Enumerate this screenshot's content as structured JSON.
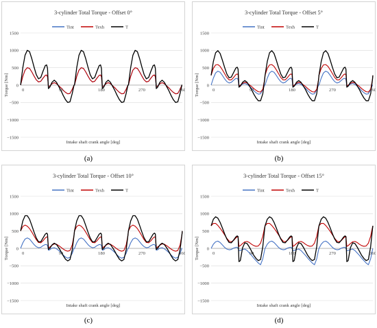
{
  "panels": [
    {
      "label": "(a)"
    },
    {
      "label": "(b)"
    },
    {
      "label": "(c)"
    },
    {
      "label": "(d)"
    }
  ],
  "colors": {
    "Tint": "#4472c4",
    "Texh": "#c00000",
    "T": "#000000"
  },
  "chart_data": [
    {
      "type": "line",
      "title": "3-cylinder Total Torque  - Offset 0°",
      "xlabel": "Intake shaft crank angle [deg]",
      "ylabel": "Torque [Nm]",
      "xlim": [
        0,
        360
      ],
      "ylim": [
        -1500,
        1500
      ],
      "xticks": [
        "0",
        "90",
        "180",
        "270",
        "360"
      ],
      "xtick_values": [
        0,
        90,
        180,
        270,
        360
      ],
      "yticks": [
        "1500",
        "1000",
        "500",
        "0",
        "−500",
        "−1000",
        "−1500"
      ],
      "ytick_values": [
        1500,
        1000,
        500,
        0,
        -500,
        -1000,
        -1500
      ],
      "grid": true,
      "legend_position": "top-center",
      "series": [
        {
          "name": "Tint",
          "x": [
            0,
            5,
            10,
            15,
            20,
            25,
            30,
            35,
            40,
            45,
            50,
            55,
            58,
            60,
            62,
            65,
            70,
            75,
            80,
            85,
            90,
            95,
            100,
            105,
            110,
            115,
            119,
            120
          ],
          "y": [
            0,
            250,
            430,
            500,
            480,
            380,
            260,
            150,
            90,
            110,
            200,
            280,
            290,
            240,
            -40,
            -30,
            40,
            70,
            40,
            -20,
            -80,
            -150,
            -210,
            -250,
            -240,
            -120,
            0,
            0
          ],
          "period": 120
        },
        {
          "name": "Texh",
          "x": [
            0,
            5,
            10,
            15,
            20,
            25,
            30,
            35,
            40,
            45,
            50,
            55,
            58,
            60,
            62,
            65,
            70,
            75,
            80,
            85,
            90,
            95,
            100,
            105,
            110,
            115,
            119,
            120
          ],
          "y": [
            0,
            250,
            430,
            500,
            480,
            380,
            260,
            150,
            90,
            110,
            200,
            280,
            290,
            240,
            -40,
            -30,
            40,
            70,
            40,
            -20,
            -80,
            -150,
            -210,
            -250,
            -240,
            -120,
            0,
            0
          ],
          "period": 120
        },
        {
          "name": "T",
          "x": [
            0,
            5,
            10,
            15,
            20,
            25,
            30,
            35,
            40,
            45,
            50,
            55,
            58,
            60,
            62,
            65,
            70,
            75,
            80,
            85,
            90,
            95,
            100,
            105,
            110,
            115,
            119,
            120
          ],
          "y": [
            0,
            500,
            860,
            1000,
            960,
            760,
            520,
            300,
            180,
            220,
            400,
            560,
            580,
            480,
            -100,
            -60,
            80,
            140,
            80,
            -40,
            -160,
            -300,
            -420,
            -500,
            -480,
            -240,
            0,
            0
          ],
          "period": 120
        }
      ]
    },
    {
      "type": "line",
      "title": "3-cylinder Total Torque  - Offset 5°",
      "xlabel": "Intake shaft crank angle [deg]",
      "ylabel": "Torque [Nm]",
      "xlim": [
        0,
        360
      ],
      "ylim": [
        -1500,
        1500
      ],
      "xticks": [
        "0",
        "90",
        "180",
        "270",
        "360"
      ],
      "xtick_values": [
        0,
        90,
        180,
        270,
        360
      ],
      "yticks": [
        "1500",
        "1000",
        "500",
        "0",
        "−500",
        "−1000",
        "−1500"
      ],
      "ytick_values": [
        1500,
        1000,
        500,
        0,
        -500,
        -1000,
        -1500
      ],
      "grid": true,
      "legend_position": "top-center",
      "series": [
        {
          "name": "Tint",
          "x": [
            0,
            5,
            10,
            15,
            20,
            25,
            30,
            35,
            40,
            45,
            50,
            55,
            58,
            60,
            62,
            65,
            70,
            75,
            80,
            85,
            90,
            95,
            100,
            105,
            110,
            115,
            119,
            120
          ],
          "y": [
            0,
            200,
            350,
            400,
            370,
            280,
            180,
            100,
            60,
            80,
            140,
            190,
            195,
            160,
            -40,
            -30,
            30,
            50,
            20,
            -30,
            -90,
            -160,
            -220,
            -260,
            -250,
            -130,
            0,
            0
          ],
          "period": 120
        },
        {
          "name": "Texh",
          "x": [
            0,
            5,
            10,
            15,
            20,
            25,
            30,
            35,
            40,
            45,
            50,
            55,
            58,
            60,
            62,
            65,
            70,
            75,
            80,
            85,
            90,
            95,
            100,
            105,
            110,
            115,
            119,
            120
          ],
          "y": [
            280,
            480,
            580,
            590,
            540,
            440,
            330,
            220,
            150,
            150,
            220,
            300,
            320,
            300,
            -20,
            0,
            50,
            80,
            60,
            10,
            -40,
            -100,
            -150,
            -190,
            -200,
            -120,
            150,
            280
          ],
          "period": 120
        },
        {
          "name": "T",
          "x": [
            0,
            5,
            10,
            15,
            20,
            25,
            30,
            35,
            40,
            45,
            50,
            55,
            58,
            60,
            62,
            65,
            70,
            75,
            80,
            85,
            90,
            95,
            100,
            105,
            110,
            115,
            119,
            120
          ],
          "y": [
            280,
            680,
            930,
            990,
            910,
            720,
            510,
            320,
            210,
            230,
            360,
            490,
            515,
            460,
            -60,
            -30,
            80,
            130,
            80,
            -20,
            -130,
            -260,
            -370,
            -450,
            -450,
            -250,
            150,
            280
          ],
          "period": 120
        }
      ]
    },
    {
      "type": "line",
      "title": "3-cylinder Total Torque  - Offset 10°",
      "xlabel": "Intake shaft crank angle [deg]",
      "ylabel": "Torque [Nm]",
      "xlim": [
        0,
        360
      ],
      "ylim": [
        -1500,
        1500
      ],
      "xticks": [
        "0",
        "90",
        "180",
        "270",
        "360"
      ],
      "xtick_values": [
        0,
        90,
        180,
        270,
        360
      ],
      "yticks": [
        "1500",
        "1000",
        "500",
        "0",
        "−500",
        "−1000",
        "−1500"
      ],
      "ytick_values": [
        1500,
        1000,
        500,
        0,
        -500,
        -1000,
        -1500
      ],
      "grid": true,
      "legend_position": "top-center",
      "series": [
        {
          "name": "Tint",
          "x": [
            0,
            5,
            10,
            15,
            20,
            25,
            30,
            35,
            40,
            45,
            50,
            55,
            58,
            60,
            62,
            65,
            70,
            75,
            80,
            85,
            90,
            95,
            100,
            105,
            110,
            115,
            119,
            120
          ],
          "y": [
            0,
            160,
            270,
            300,
            270,
            190,
            110,
            50,
            20,
            30,
            80,
            110,
            110,
            80,
            -50,
            -40,
            10,
            20,
            -10,
            -60,
            -120,
            -190,
            -250,
            -280,
            -260,
            -140,
            0,
            0
          ],
          "period": 120
        },
        {
          "name": "Texh",
          "x": [
            0,
            5,
            10,
            15,
            20,
            25,
            30,
            35,
            40,
            45,
            50,
            55,
            58,
            60,
            62,
            65,
            70,
            75,
            80,
            85,
            90,
            95,
            100,
            105,
            110,
            115,
            119,
            120
          ],
          "y": [
            500,
            630,
            670,
            640,
            570,
            470,
            360,
            250,
            170,
            160,
            220,
            300,
            330,
            330,
            20,
            40,
            90,
            130,
            120,
            80,
            30,
            -20,
            -60,
            -80,
            -60,
            100,
            380,
            500
          ],
          "period": 120
        },
        {
          "name": "T",
          "x": [
            0,
            5,
            10,
            15,
            20,
            25,
            30,
            35,
            40,
            45,
            50,
            55,
            58,
            60,
            62,
            65,
            70,
            75,
            80,
            85,
            90,
            95,
            100,
            105,
            110,
            115,
            119,
            120
          ],
          "y": [
            500,
            790,
            940,
            940,
            840,
            660,
            470,
            300,
            190,
            190,
            300,
            410,
            440,
            410,
            -30,
            0,
            100,
            150,
            110,
            20,
            -90,
            -210,
            -310,
            -360,
            -320,
            -40,
            380,
            500
          ],
          "period": 120
        }
      ]
    },
    {
      "type": "line",
      "title": "3-cylinder Total Torque  - Offset 15°",
      "xlabel": "Intake shaft crank angle [deg]",
      "ylabel": "Torque [Nm]",
      "xlim": [
        0,
        360
      ],
      "ylim": [
        -1500,
        1500
      ],
      "xticks": [
        "0",
        "90",
        "180",
        "270",
        "360"
      ],
      "xtick_values": [
        0,
        90,
        180,
        270,
        360
      ],
      "yticks": [
        "1500",
        "1000",
        "500",
        "0",
        "−500",
        "−1000",
        "−1500"
      ],
      "ytick_values": [
        1500,
        1000,
        500,
        0,
        -500,
        -1000,
        -1500
      ],
      "grid": true,
      "legend_position": "top-center",
      "series": [
        {
          "name": "Tint",
          "x": [
            0,
            5,
            10,
            15,
            20,
            25,
            30,
            35,
            40,
            45,
            50,
            55,
            58,
            60,
            62,
            65,
            70,
            75,
            80,
            85,
            90,
            95,
            100,
            105,
            110,
            115,
            119,
            120
          ],
          "y": [
            0,
            120,
            190,
            210,
            170,
            100,
            30,
            -20,
            -40,
            -30,
            10,
            30,
            30,
            0,
            -60,
            -60,
            -30,
            -20,
            -60,
            -130,
            -200,
            -280,
            -350,
            -420,
            -470,
            -300,
            -50,
            0
          ],
          "period": 120
        },
        {
          "name": "Texh",
          "x": [
            0,
            5,
            10,
            15,
            20,
            25,
            30,
            35,
            40,
            45,
            50,
            55,
            58,
            60,
            62,
            65,
            70,
            75,
            80,
            85,
            90,
            95,
            100,
            105,
            110,
            115,
            119,
            120
          ],
          "y": [
            650,
            720,
            720,
            660,
            580,
            490,
            390,
            290,
            210,
            190,
            230,
            300,
            330,
            340,
            60,
            80,
            140,
            190,
            200,
            170,
            120,
            80,
            60,
            70,
            150,
            350,
            600,
            650
          ],
          "period": 120
        },
        {
          "name": "T",
          "x": [
            0,
            5,
            10,
            15,
            20,
            25,
            30,
            35,
            40,
            45,
            50,
            55,
            58,
            60,
            62,
            65,
            70,
            75,
            80,
            85,
            90,
            95,
            100,
            105,
            110,
            115,
            119,
            120
          ],
          "y": [
            650,
            840,
            910,
            870,
            750,
            590,
            420,
            270,
            170,
            160,
            240,
            330,
            360,
            340,
            -380,
            -350,
            20,
            160,
            140,
            40,
            -80,
            -200,
            -290,
            -350,
            -320,
            50,
            550,
            650
          ],
          "period": 120
        }
      ]
    }
  ]
}
